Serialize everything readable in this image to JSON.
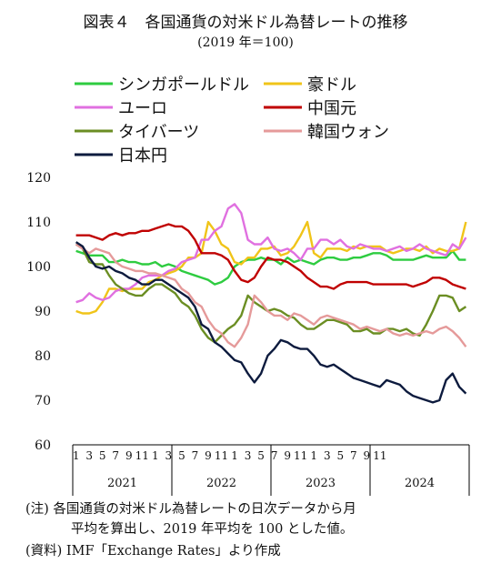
{
  "title": "図表４　各国通貨の対米ドル為替レートの推移",
  "subtitle": "(2019 年＝100)",
  "notes": {
    "note_line1": "(注) 各国通貨の対米ドル為替レートの日次データから月",
    "note_line2": "平均を算出し、2019 年平均を 100 とした値。",
    "source": "(資料) IMF「Exchange Rates」より作成"
  },
  "chart_data": {
    "type": "line",
    "ylim": [
      60,
      120
    ],
    "yticks": [
      60,
      70,
      80,
      90,
      100,
      110,
      120
    ],
    "month_tick_labels": [
      "1",
      "3",
      "5",
      "7",
      "9",
      "11"
    ],
    "years": [
      "2021",
      "2022",
      "2023",
      "2024"
    ],
    "legend_position": "top",
    "series": [
      {
        "name": "シンガポールドル",
        "color": "#2ecc40",
        "values": [
          103.5,
          103,
          102.5,
          102.5,
          102.5,
          101,
          101,
          101.5,
          101,
          101,
          100.5,
          100.5,
          101,
          100,
          100.5,
          100,
          99,
          98.5,
          98,
          97.5,
          97,
          96,
          96.5,
          97.5,
          100,
          101,
          101.5,
          101.5,
          102,
          101.5,
          101.5,
          100.5,
          102,
          101,
          101.5,
          101,
          100.5,
          101.5,
          102,
          102,
          101.5,
          101.5,
          102,
          102,
          102.5,
          103,
          103,
          102.5,
          101.5,
          101.5,
          101.5,
          101.5,
          102,
          102.5,
          102,
          102,
          102,
          103.5,
          101.5,
          101.5
        ]
      },
      {
        "name": "豪ドル",
        "color": "#f0c419",
        "values": [
          90,
          89.5,
          89.5,
          90,
          92,
          95,
          95,
          94.5,
          95,
          95,
          95,
          96.5,
          97,
          98,
          98.5,
          99,
          100,
          102,
          102,
          103,
          110,
          108,
          105,
          104,
          101,
          100.5,
          102,
          102,
          104,
          104,
          104.5,
          102.5,
          103,
          104.5,
          107,
          110,
          103,
          102,
          104,
          104,
          104,
          103.5,
          104.5,
          104,
          104.5,
          104.5,
          104.5,
          103.5,
          103,
          103.5,
          104,
          104,
          103.5,
          104.5,
          103,
          104,
          103.5,
          103.5,
          104,
          110
        ]
      },
      {
        "name": "ユーロ",
        "color": "#e070e0",
        "values": [
          92,
          92.5,
          94,
          93,
          92.5,
          93,
          94.5,
          95,
          95,
          96,
          97.5,
          98,
          98,
          98,
          99,
          99.5,
          101,
          101.5,
          102,
          106,
          106,
          108,
          109,
          113,
          114,
          112,
          106,
          105,
          105,
          106.5,
          104,
          103.5,
          104,
          103,
          101.5,
          104,
          104,
          106,
          106,
          105,
          106,
          104.5,
          104,
          105,
          104.5,
          104,
          104,
          103.5,
          104,
          104.5,
          103.5,
          104,
          105,
          104,
          103.5,
          103,
          102.5,
          105,
          104,
          106.5
        ]
      },
      {
        "name": "中国元",
        "color": "#c00000",
        "values": [
          107,
          107,
          107,
          106.5,
          106,
          107,
          107.5,
          107,
          107.5,
          107.5,
          108,
          108,
          108.5,
          109,
          109.5,
          109,
          109,
          108,
          106,
          103,
          103,
          103,
          102.5,
          101.5,
          99,
          97,
          96.5,
          97.5,
          100,
          102,
          101.5,
          101.5,
          101,
          100,
          99,
          97.5,
          96.5,
          95.5,
          95.5,
          95,
          96,
          96.5,
          96.5,
          96.5,
          96.5,
          96,
          96,
          96,
          96,
          96,
          96,
          95.5,
          96,
          96.5,
          97.5,
          97.5,
          97,
          96,
          95.5,
          95
        ]
      },
      {
        "name": "タイバーツ",
        "color": "#6b8e23",
        "values": [
          105,
          104,
          101,
          100.5,
          100.5,
          98,
          96,
          95,
          94,
          93.5,
          93.5,
          95,
          96,
          96,
          95,
          94,
          92,
          91,
          89,
          86,
          84,
          83,
          84.5,
          86,
          87,
          89,
          93.5,
          92,
          91,
          90,
          90.5,
          90,
          89,
          88.5,
          87,
          86,
          86,
          87,
          88,
          88,
          87.5,
          87,
          85.5,
          85.5,
          86,
          85,
          85,
          86,
          86,
          85.5,
          86,
          85,
          84.5,
          87,
          90,
          93.5,
          93.5,
          93,
          90,
          91
        ]
      },
      {
        "name": "韓国ウォン",
        "color": "#e59a9a",
        "values": [
          105,
          104,
          103,
          104,
          103.5,
          103,
          101,
          100,
          99.5,
          99,
          99,
          98.5,
          98.5,
          98,
          97.5,
          97,
          95,
          94,
          92,
          91,
          88,
          86,
          85,
          83,
          82,
          84,
          87,
          93.5,
          92,
          90,
          89,
          89,
          88,
          89.5,
          89,
          88,
          87,
          88.5,
          89,
          88.5,
          88,
          87.5,
          87,
          86,
          86.5,
          86,
          85.5,
          86,
          85,
          84.5,
          85,
          84.5,
          85,
          85.5,
          85,
          86,
          86.5,
          85.5,
          84,
          82
        ]
      },
      {
        "name": "日本円",
        "color": "#0d1b3e",
        "values": [
          105.5,
          104.5,
          102,
          100,
          99.5,
          100,
          99,
          98.5,
          97.5,
          97,
          96,
          96,
          97,
          97,
          96,
          95,
          94,
          93,
          91,
          87,
          86,
          83,
          82,
          80.5,
          79,
          78.5,
          76,
          74,
          76,
          80,
          81.5,
          83.5,
          83,
          82,
          81.5,
          81.5,
          80,
          78,
          77.5,
          78,
          77,
          76,
          75,
          74.5,
          74,
          73.5,
          73,
          74.5,
          74,
          73.5,
          72,
          71,
          70.5,
          70,
          69.5,
          70,
          74.5,
          76,
          73,
          71.5
        ]
      }
    ]
  }
}
